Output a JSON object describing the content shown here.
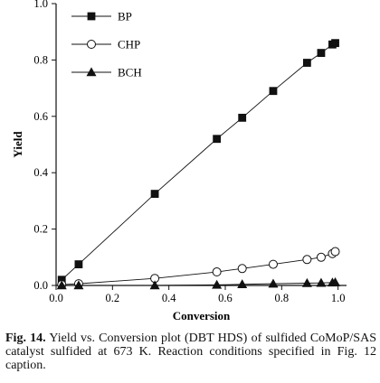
{
  "chart_data": {
    "type": "line",
    "title": "",
    "xlabel": "Conversion",
    "ylabel": "Yield",
    "xlim": [
      0.0,
      1.03
    ],
    "ylim": [
      0.0,
      1.0
    ],
    "xticks": [
      "0.0",
      "0.2",
      "0.4",
      "0.6",
      "0.8",
      "1.0"
    ],
    "yticks": [
      "0.0",
      "0.2",
      "0.4",
      "0.6",
      "0.8",
      "1.0"
    ],
    "grid": false,
    "legend_position": "top-left",
    "series": [
      {
        "name": "BP",
        "marker": "filled-square",
        "x": [
          0.02,
          0.08,
          0.35,
          0.57,
          0.66,
          0.77,
          0.89,
          0.94,
          0.98,
          0.99
        ],
        "y": [
          0.02,
          0.075,
          0.325,
          0.52,
          0.595,
          0.69,
          0.79,
          0.825,
          0.855,
          0.86
        ]
      },
      {
        "name": "CHP",
        "marker": "open-circle",
        "x": [
          0.02,
          0.08,
          0.35,
          0.57,
          0.66,
          0.77,
          0.89,
          0.94,
          0.98,
          0.99
        ],
        "y": [
          0.003,
          0.006,
          0.025,
          0.048,
          0.06,
          0.075,
          0.092,
          0.1,
          0.113,
          0.12
        ]
      },
      {
        "name": "BCH",
        "marker": "filled-triangle",
        "x": [
          0.02,
          0.08,
          0.35,
          0.57,
          0.66,
          0.77,
          0.89,
          0.94,
          0.98,
          0.99
        ],
        "y": [
          0.0,
          0.0,
          0.0,
          0.002,
          0.004,
          0.006,
          0.008,
          0.009,
          0.01,
          0.011
        ]
      }
    ]
  },
  "caption": {
    "label": "Fig. 14.",
    "text": " Yield vs. Conversion plot (DBT HDS) of sulfided CoMoP/SAS catalyst sulfided at 673 K. Reaction conditions specified in Fig. 12 caption."
  }
}
